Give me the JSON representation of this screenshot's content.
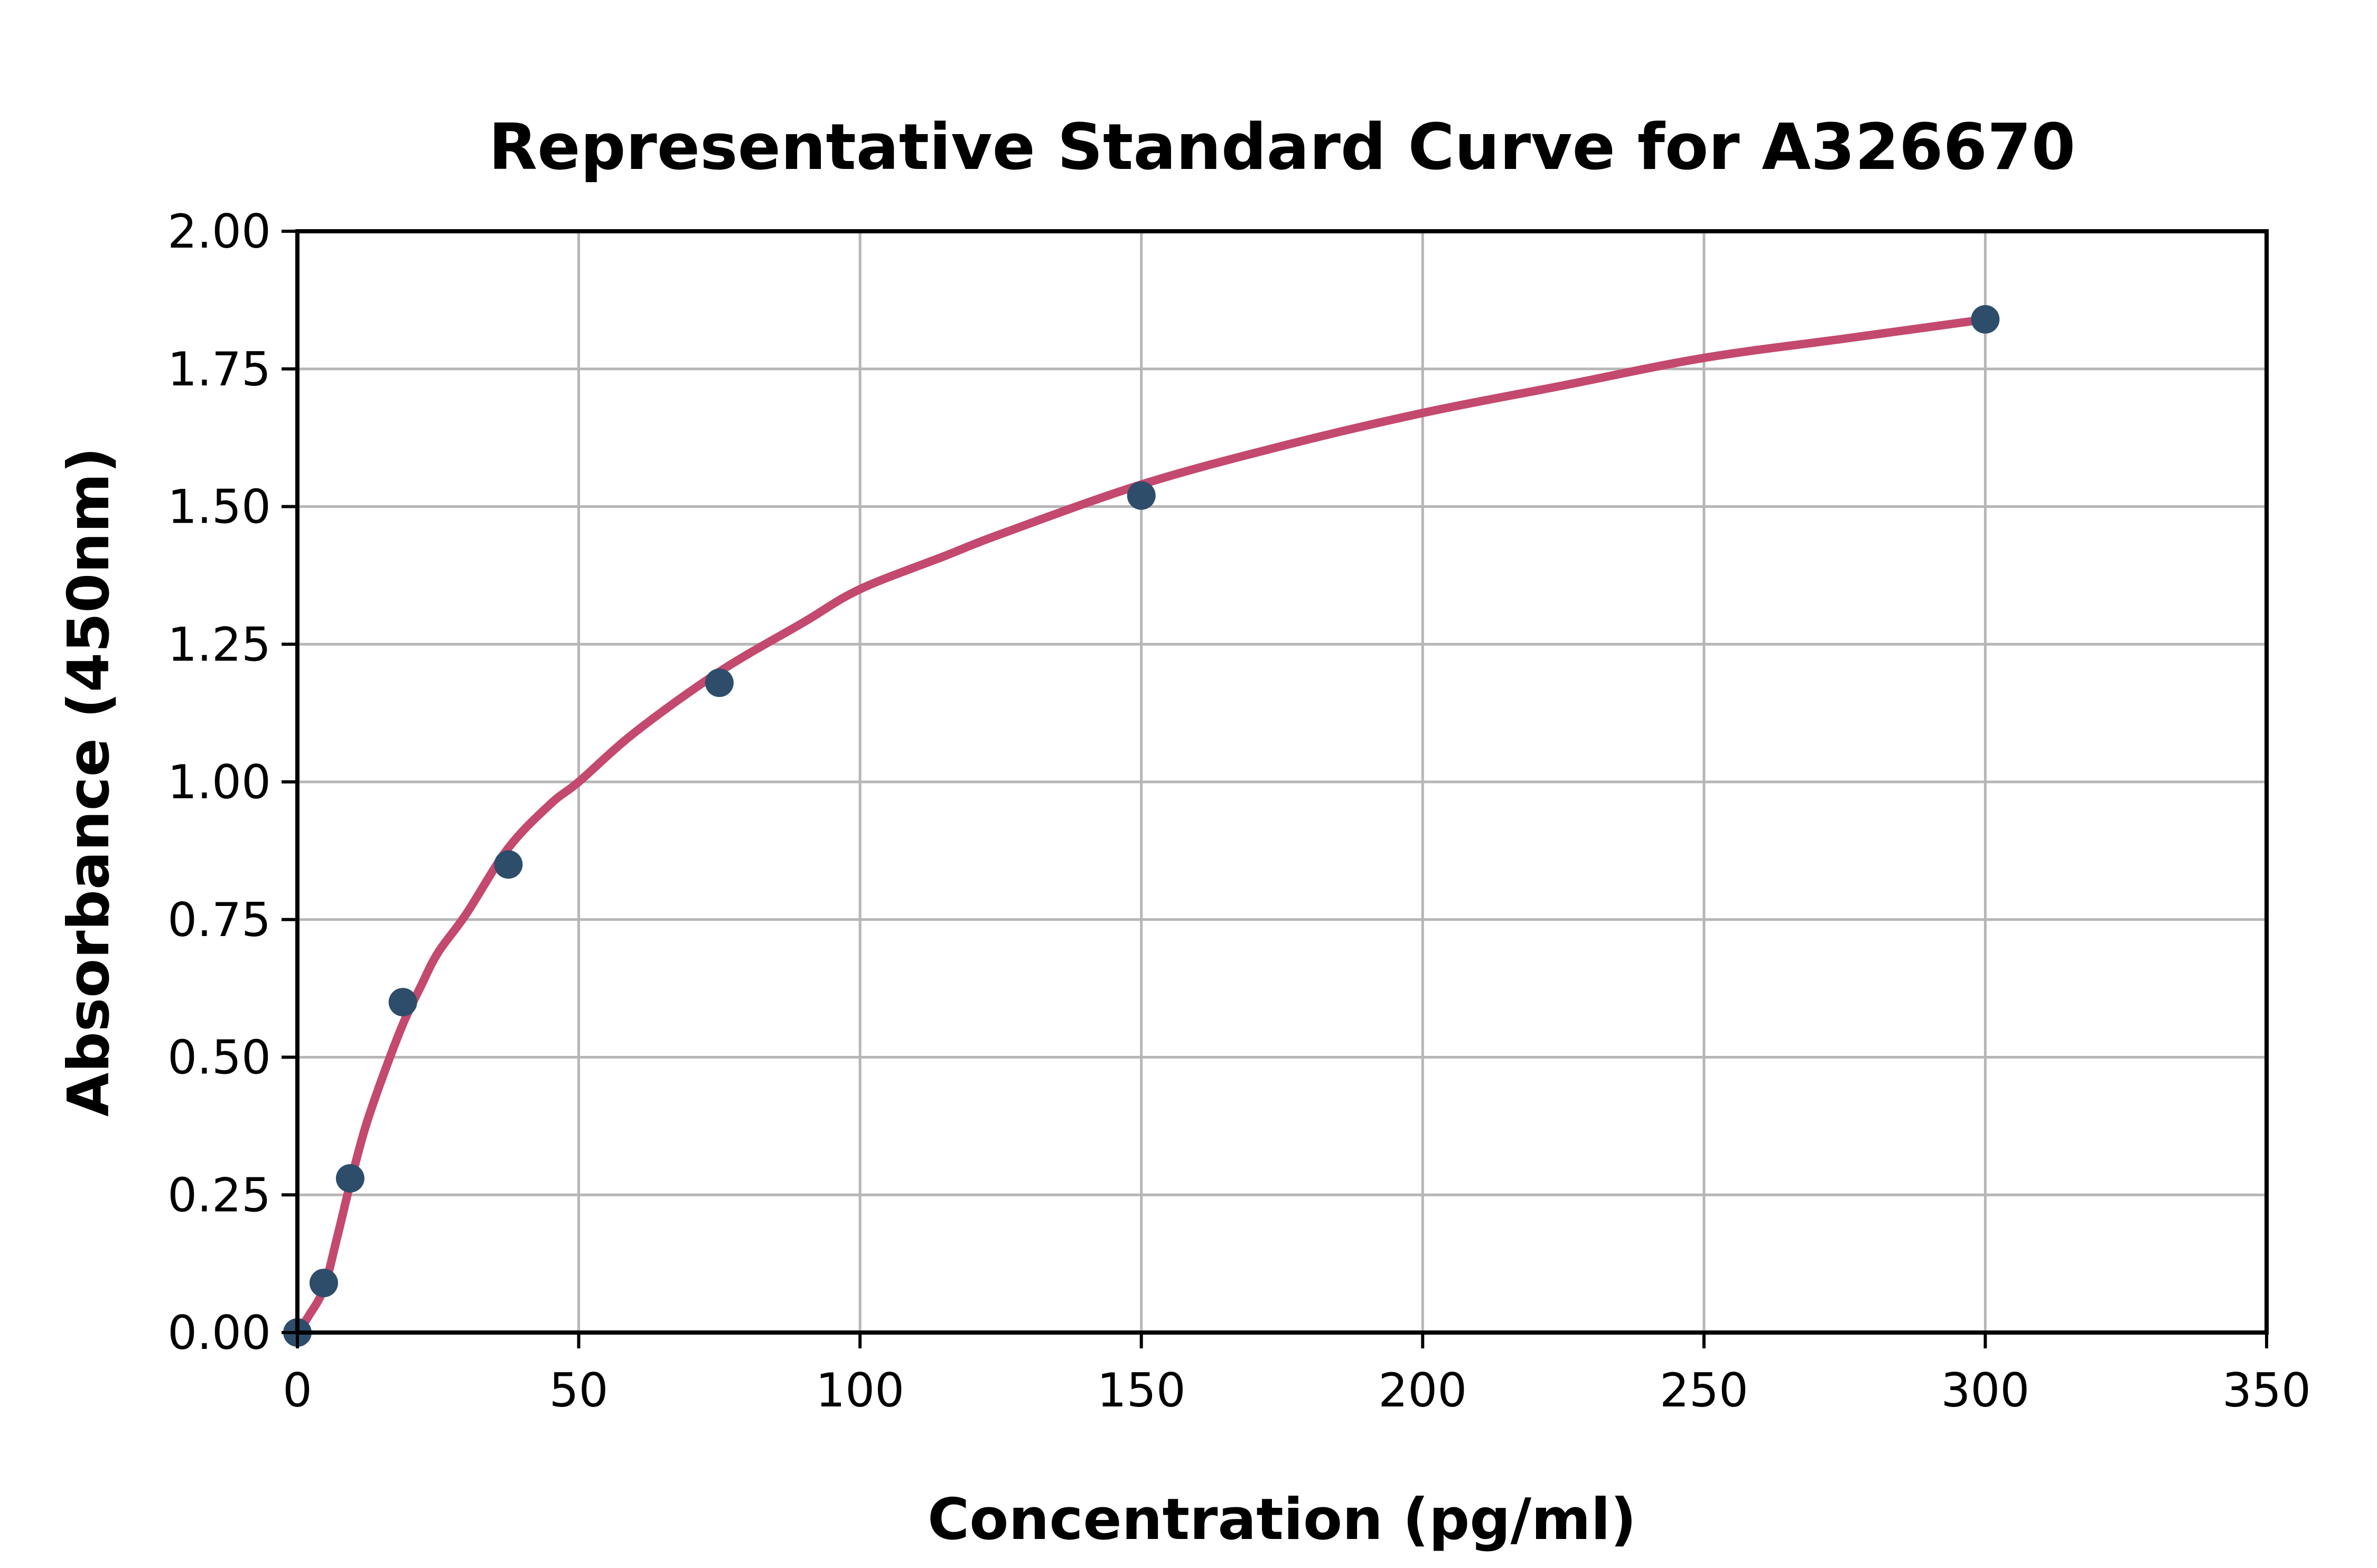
{
  "page": {
    "background_color": "#ffffff"
  },
  "chart_data": {
    "type": "scatter",
    "title": "Representative Standard Curve for A326670",
    "xlabel": "Concentration (pg/ml)",
    "ylabel": "Absorbance (450nm)",
    "xlim": [
      0,
      350
    ],
    "ylim": [
      0,
      2.0
    ],
    "grid": true,
    "legend_position": "none",
    "xticks": {
      "values": [
        0,
        50,
        100,
        150,
        200,
        250,
        300,
        350
      ],
      "labels": [
        "0",
        "50",
        "100",
        "150",
        "200",
        "250",
        "300",
        "350"
      ]
    },
    "yticks": {
      "values": [
        0,
        0.25,
        0.5,
        0.75,
        1.0,
        1.25,
        1.5,
        1.75,
        2.0
      ],
      "labels": [
        "0.00",
        "0.25",
        "0.50",
        "0.75",
        "1.00",
        "1.25",
        "1.50",
        "1.75",
        "2.00"
      ]
    },
    "series": [
      {
        "name": "standard-points",
        "type": "scatter",
        "marker": "circle",
        "color": "#2e4d6b",
        "points": [
          [
            0,
            0.0
          ],
          [
            4.69,
            0.09
          ],
          [
            9.38,
            0.28
          ],
          [
            18.75,
            0.6
          ],
          [
            37.5,
            0.85
          ],
          [
            75,
            1.18
          ],
          [
            150,
            1.52
          ],
          [
            300,
            1.84
          ]
        ]
      },
      {
        "name": "fit-curve",
        "type": "line",
        "color": "#c4496e",
        "points": [
          [
            0,
            0.0
          ],
          [
            2,
            0.03
          ],
          [
            4.69,
            0.08
          ],
          [
            7,
            0.17
          ],
          [
            9.38,
            0.27
          ],
          [
            12,
            0.37
          ],
          [
            15,
            0.46
          ],
          [
            18.75,
            0.56
          ],
          [
            22,
            0.63
          ],
          [
            25,
            0.69
          ],
          [
            30,
            0.76
          ],
          [
            37.5,
            0.88
          ],
          [
            45,
            0.96
          ],
          [
            50,
            1.0
          ],
          [
            60,
            1.09
          ],
          [
            75,
            1.2
          ],
          [
            90,
            1.29
          ],
          [
            100,
            1.35
          ],
          [
            115,
            1.41
          ],
          [
            125,
            1.45
          ],
          [
            150,
            1.54
          ],
          [
            175,
            1.61
          ],
          [
            200,
            1.67
          ],
          [
            225,
            1.72
          ],
          [
            250,
            1.77
          ],
          [
            275,
            1.805
          ],
          [
            300,
            1.84
          ]
        ]
      }
    ],
    "colors": {
      "axis": "#000000",
      "grid": "#b6b6b6",
      "marker": "#2e4d6b",
      "curve": "#c4496e",
      "text": "#000000",
      "background": "#ffffff"
    }
  }
}
